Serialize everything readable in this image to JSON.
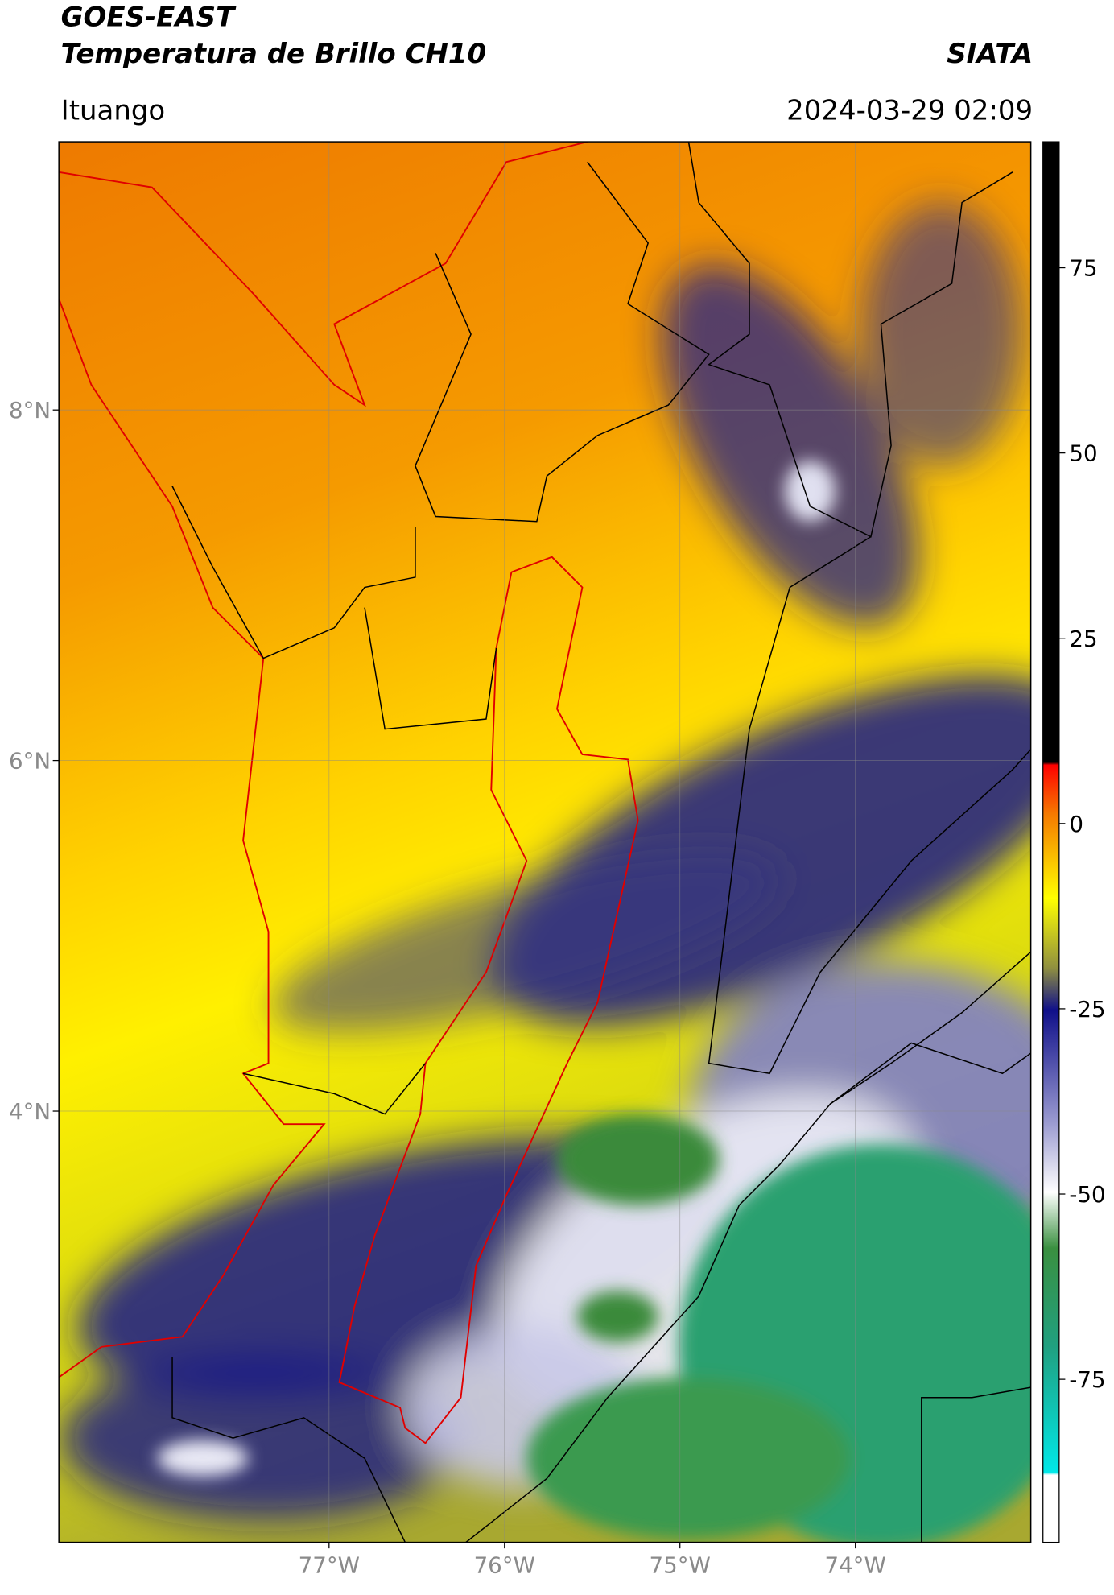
{
  "header": {
    "title": "GOES-EAST",
    "subtitle": "Temperatura de Brillo CH10",
    "brand": "SIATA",
    "location": "Ituango",
    "datetime": "2024-03-29 02:09"
  },
  "map": {
    "xlim": [
      -78.54,
      -73.0
    ],
    "ylim": [
      1.54,
      9.53
    ],
    "xticks": [
      {
        "value": -77,
        "label": "77°W"
      },
      {
        "value": -76,
        "label": "76°W"
      },
      {
        "value": -75,
        "label": "75°W"
      },
      {
        "value": -74,
        "label": "74°W"
      }
    ],
    "yticks": [
      {
        "value": 4,
        "label": "4°N"
      },
      {
        "value": 6,
        "label": "6°N"
      },
      {
        "value": 8,
        "label": "8°N"
      }
    ]
  },
  "colorbar": {
    "lim": [
      -97,
      92
    ],
    "ticks": [
      -75,
      -50,
      -25,
      0,
      25,
      50,
      75
    ]
  }
}
